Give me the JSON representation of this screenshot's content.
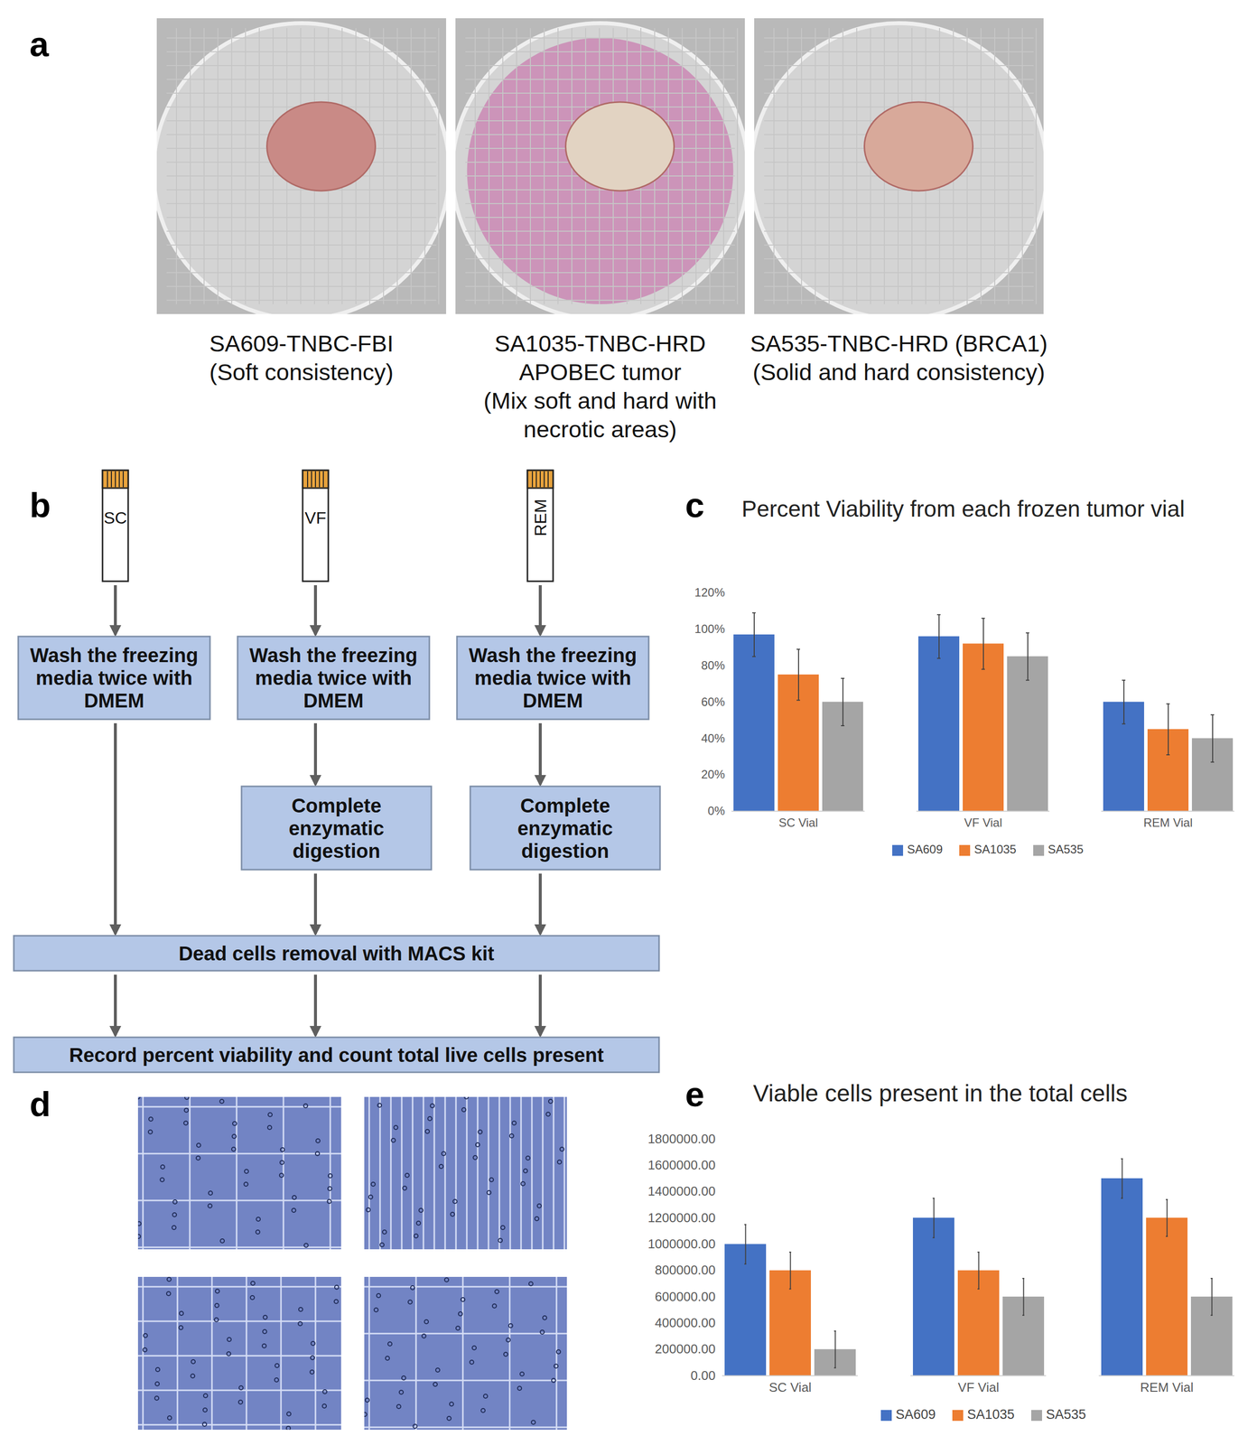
{
  "panel_labels": [
    "a",
    "b",
    "c",
    "d",
    "e"
  ],
  "panel_a": {
    "photos": [
      {
        "caption": [
          "SA609-TNBC-FBI",
          "(Soft consistency)"
        ]
      },
      {
        "caption": [
          "SA1035-TNBC-HRD",
          "APOBEC tumor",
          "(Mix soft and hard with",
          "necrotic areas)"
        ]
      },
      {
        "caption": [
          "SA535-TNBC-HRD (BRCA1)",
          "(Solid and hard consistency)"
        ]
      }
    ]
  },
  "panel_b": {
    "vials": [
      {
        "label": "SC",
        "steps": [
          [
            "Wash the freezing",
            "media twice with",
            "DMEM"
          ]
        ]
      },
      {
        "label": "VF",
        "steps": [
          [
            "Wash the freezing",
            "media twice with",
            "DMEM"
          ],
          [
            "Complete",
            "enzymatic",
            "digestion"
          ]
        ]
      },
      {
        "label": "REM",
        "steps": [
          [
            "Wash the freezing",
            "media twice with",
            "DMEM"
          ],
          [
            "Complete",
            "enzymatic",
            "digestion"
          ]
        ]
      }
    ],
    "common_steps": [
      "Dead cells removal with MACS kit",
      "Record percent viability and count total live cells present"
    ]
  },
  "chart_data": [
    {
      "type": "bar",
      "title": "Percent Viability from each frozen tumor vial",
      "categories": [
        "SC Vial",
        "VF Vial",
        "REM Vial"
      ],
      "series": [
        {
          "name": "SA609",
          "color": "#4472c4",
          "values": [
            97,
            96,
            60
          ],
          "errors": [
            12,
            12,
            12
          ]
        },
        {
          "name": "SA1035",
          "color": "#ed7d31",
          "values": [
            75,
            92,
            45
          ],
          "errors": [
            14,
            14,
            14
          ]
        },
        {
          "name": "SA535",
          "color": "#a5a5a5",
          "values": [
            60,
            85,
            40
          ],
          "errors": [
            13,
            13,
            13
          ]
        }
      ],
      "ylim": [
        0,
        120
      ],
      "yticks": [
        {
          "value": 0,
          "label": "0%"
        },
        {
          "value": 20,
          "label": "20%"
        },
        {
          "value": 40,
          "label": "40%"
        },
        {
          "value": 60,
          "label": "60%"
        },
        {
          "value": 80,
          "label": "80%"
        },
        {
          "value": 100,
          "label": "100%"
        },
        {
          "value": 120,
          "label": "120%"
        }
      ],
      "grid": false,
      "legend": "bottom"
    },
    {
      "type": "bar",
      "title": "Viable cells present in the total cells",
      "categories": [
        "SC Vial",
        "VF Vial",
        "REM Vial"
      ],
      "series": [
        {
          "name": "SA609",
          "color": "#4472c4",
          "values": [
            1000000,
            1200000,
            1500000
          ],
          "errors": [
            150000,
            150000,
            150000
          ]
        },
        {
          "name": "SA1035",
          "color": "#ed7d31",
          "values": [
            800000,
            800000,
            1200000
          ],
          "errors": [
            140000,
            140000,
            140000
          ]
        },
        {
          "name": "SA535",
          "color": "#a5a5a5",
          "values": [
            200000,
            600000,
            600000
          ],
          "errors": [
            140000,
            140000,
            140000
          ]
        }
      ],
      "ylim": [
        0,
        1800000
      ],
      "yticks": [
        {
          "value": 0,
          "label": "0.00"
        },
        {
          "value": 200000,
          "label": "200000.00"
        },
        {
          "value": 400000,
          "label": "400000.00"
        },
        {
          "value": 600000,
          "label": "600000.00"
        },
        {
          "value": 800000,
          "label": "800000.00"
        },
        {
          "value": 1000000,
          "label": "1000000.00"
        },
        {
          "value": 1200000,
          "label": "1200000.00"
        },
        {
          "value": 1400000,
          "label": "1400000.00"
        },
        {
          "value": 1600000,
          "label": "1600000.00"
        },
        {
          "value": 1800000,
          "label": "1800000.00"
        }
      ],
      "grid": false,
      "legend": "bottom"
    }
  ]
}
